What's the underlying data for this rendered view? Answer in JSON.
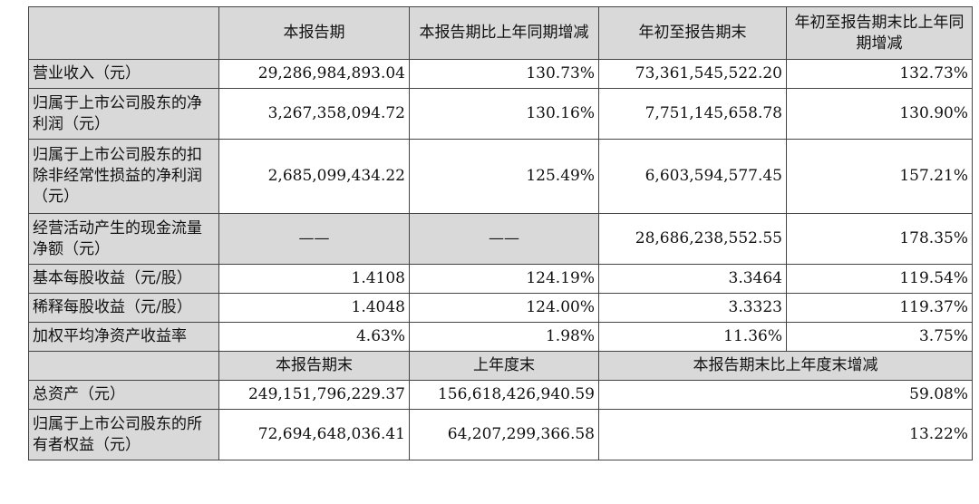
{
  "header1": {
    "c1": "本报告期",
    "c2": "本报告期比上年同期增减",
    "c3": "年初至报告期末",
    "c4": "年初至报告期末比上年同期增减"
  },
  "rows": [
    {
      "label": "营业收入（元）",
      "v1": "29,286,984,893.04",
      "v2": "130.73%",
      "v3": "73,361,545,522.20",
      "v4": "132.73%"
    },
    {
      "label": "归属于上市公司股东的净利润（元）",
      "v1": "3,267,358,094.72",
      "v2": "130.16%",
      "v3": "7,751,145,658.78",
      "v4": "130.90%"
    },
    {
      "label": "归属于上市公司股东的扣除非经常性损益的净利润（元）",
      "v1": "2,685,099,434.22",
      "v2": "125.49%",
      "v3": "6,603,594,577.45",
      "v4": "157.21%"
    },
    {
      "label": "经营活动产生的现金流量净额（元）",
      "v1": "——",
      "v2": "——",
      "v3": "28,686,238,552.55",
      "v4": "178.35%"
    },
    {
      "label": "基本每股收益（元/股）",
      "v1": "1.4108",
      "v2": "124.19%",
      "v3": "3.3464",
      "v4": "119.54%"
    },
    {
      "label": "稀释每股收益（元/股）",
      "v1": "1.4048",
      "v2": "124.00%",
      "v3": "3.3323",
      "v4": "119.37%"
    },
    {
      "label": "加权平均净资产收益率",
      "v1": "4.63%",
      "v2": "1.98%",
      "v3": "11.36%",
      "v4": "3.75%"
    }
  ],
  "header2": {
    "c1": "本报告期末",
    "c2": "上年度末",
    "c3": "本报告期末比上年度末增减"
  },
  "rows2": [
    {
      "label": "总资产（元）",
      "v1": "249,151,796,229.37",
      "v2": "156,618,426,940.59",
      "v3": "59.08%"
    },
    {
      "label": "归属于上市公司股东的所有者权益（元）",
      "v1": "72,694,648,036.41",
      "v2": "64,207,299,366.58",
      "v3": "13.22%"
    }
  ]
}
